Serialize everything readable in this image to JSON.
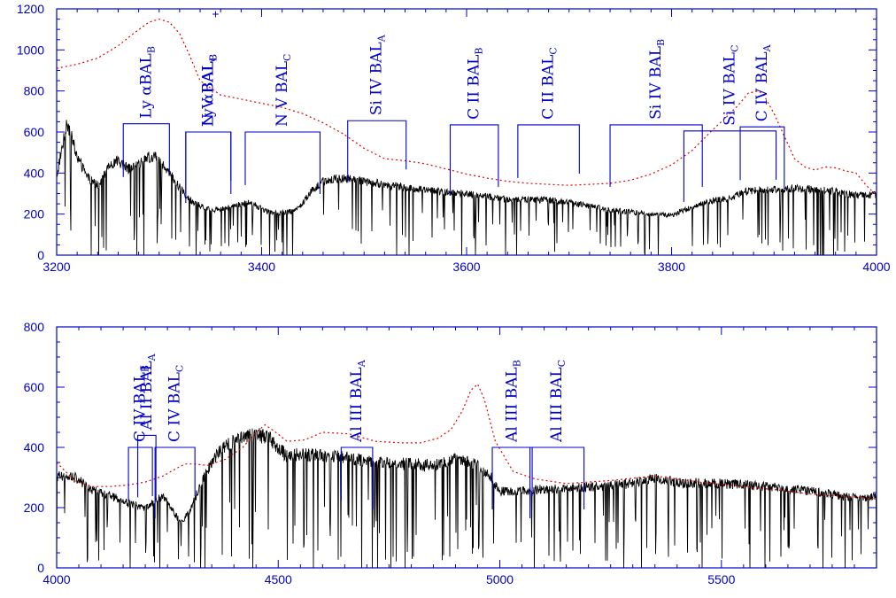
{
  "chart_data": [
    {
      "type": "line",
      "title": "",
      "xlabel": "",
      "ylabel": "",
      "xlim": [
        3200,
        4000
      ],
      "ylim": [
        0,
        1200
      ],
      "x_ticks": [
        3200,
        3400,
        3600,
        3800,
        4000
      ],
      "y_ticks": [
        0,
        200,
        400,
        600,
        800,
        1000,
        1200
      ],
      "grid": false,
      "series": [
        {
          "color": "#000000",
          "style": "solid",
          "x": [
            3200,
            3205,
            3210,
            3220,
            3230,
            3240,
            3250,
            3260,
            3270,
            3280,
            3290,
            3300,
            3310,
            3320,
            3330,
            3340,
            3350,
            3360,
            3370,
            3380,
            3390,
            3400,
            3410,
            3420,
            3430,
            3440,
            3450,
            3460,
            3470,
            3480,
            3490,
            3500,
            3520,
            3540,
            3560,
            3580,
            3600,
            3620,
            3640,
            3660,
            3680,
            3700,
            3720,
            3740,
            3760,
            3780,
            3800,
            3820,
            3840,
            3860,
            3870,
            3880,
            3900,
            3920,
            3940,
            3960,
            3980,
            4000
          ],
          "values": [
            380,
            520,
            650,
            480,
            380,
            340,
            420,
            460,
            420,
            440,
            480,
            470,
            400,
            330,
            270,
            240,
            220,
            225,
            235,
            250,
            255,
            225,
            205,
            205,
            215,
            255,
            320,
            360,
            370,
            375,
            370,
            360,
            345,
            330,
            320,
            305,
            300,
            285,
            270,
            270,
            270,
            255,
            240,
            220,
            210,
            200,
            195,
            235,
            265,
            280,
            310,
            315,
            320,
            325,
            320,
            310,
            290,
            295
          ]
        },
        {
          "color": "#e00000",
          "style": "dotted",
          "x": [
            3200,
            3220,
            3240,
            3260,
            3275,
            3290,
            3300,
            3310,
            3320,
            3330,
            3340,
            3360,
            3380,
            3400,
            3420,
            3440,
            3460,
            3480,
            3500,
            3520,
            3540,
            3560,
            3580,
            3600,
            3620,
            3640,
            3660,
            3680,
            3700,
            3720,
            3740,
            3760,
            3780,
            3800,
            3820,
            3840,
            3855,
            3865,
            3875,
            3885,
            3890,
            3900,
            3910,
            3920,
            3930,
            3940,
            3950,
            3960,
            3970,
            3980,
            3990,
            4000
          ],
          "values": [
            910,
            930,
            960,
            1020,
            1080,
            1135,
            1150,
            1135,
            1080,
            970,
            850,
            780,
            760,
            740,
            720,
            690,
            645,
            590,
            520,
            470,
            460,
            445,
            420,
            395,
            375,
            360,
            350,
            345,
            340,
            345,
            350,
            365,
            395,
            440,
            510,
            610,
            680,
            730,
            790,
            800,
            780,
            690,
            580,
            470,
            430,
            415,
            430,
            425,
            410,
            400,
            340,
            290
          ]
        }
      ],
      "annotations": [
        {
          "label": "Ly αBAL",
          "sub": "B",
          "x1": 3265,
          "x2": 3310,
          "y_top": 640
        },
        {
          "label": "N V BAL",
          "sub": "B",
          "x1": 3326,
          "x2": 3370,
          "y_top": 600
        },
        {
          "label": "Ly αBAL",
          "sub": "C",
          "x1": 3326,
          "x2": 3370,
          "y_top": 600
        },
        {
          "label": "N V BAL",
          "sub": "C",
          "x1": 3384,
          "x2": 3457,
          "y_top": 600
        },
        {
          "label": "Si IV BAL",
          "sub": "A",
          "x1": 3484,
          "x2": 3541,
          "y_top": 655
        },
        {
          "label": "C II BAL",
          "sub": "B",
          "x1": 3584,
          "x2": 3631,
          "y_top": 635
        },
        {
          "label": "C II BAL",
          "sub": "C",
          "x1": 3650,
          "x2": 3710,
          "y_top": 635
        },
        {
          "label": "Si IV BAL",
          "sub": "B",
          "x1": 3740,
          "x2": 3830,
          "y_top": 635
        },
        {
          "label": "Si IV BAL",
          "sub": "C",
          "x1": 3812,
          "x2": 3902,
          "y_top": 605
        },
        {
          "label": "C IV BAL",
          "sub": "A",
          "x1": 3867,
          "x2": 3910,
          "y_top": 625
        }
      ],
      "markers": [
        {
          "symbol": "+",
          "x": 3355,
          "y": 1180
        }
      ]
    },
    {
      "type": "line",
      "title": "",
      "xlabel": "",
      "ylabel": "",
      "xlim": [
        4000,
        5850
      ],
      "ylim": [
        0,
        800
      ],
      "x_ticks": [
        4000,
        4500,
        5000,
        5500
      ],
      "y_ticks": [
        0,
        200,
        400,
        600,
        800
      ],
      "grid": false,
      "series": [
        {
          "color": "#000000",
          "style": "solid",
          "x": [
            4000,
            4040,
            4080,
            4120,
            4160,
            4200,
            4240,
            4280,
            4300,
            4320,
            4340,
            4360,
            4380,
            4400,
            4420,
            4440,
            4460,
            4480,
            4500,
            4520,
            4540,
            4560,
            4600,
            4650,
            4700,
            4750,
            4800,
            4850,
            4900,
            4950,
            4980,
            5000,
            5050,
            5100,
            5150,
            5200,
            5300,
            5350,
            5400,
            5500,
            5600,
            5700,
            5750,
            5780
          ],
          "values": [
            305,
            300,
            260,
            240,
            215,
            200,
            240,
            150,
            185,
            260,
            320,
            370,
            405,
            420,
            430,
            440,
            440,
            430,
            400,
            370,
            375,
            375,
            375,
            365,
            355,
            345,
            345,
            340,
            365,
            340,
            300,
            255,
            255,
            262,
            265,
            268,
            280,
            300,
            283,
            280,
            270,
            255,
            245,
            235
          ]
        },
        {
          "color": "#e00000",
          "style": "dotted",
          "x": [
            4000,
            4040,
            4080,
            4120,
            4160,
            4200,
            4240,
            4270,
            4290,
            4310,
            4340,
            4380,
            4420,
            4450,
            4470,
            4490,
            4520,
            4560,
            4600,
            4660,
            4720,
            4780,
            4820,
            4860,
            4890,
            4915,
            4935,
            4950,
            4965,
            4990,
            5030,
            5080,
            5150,
            5250,
            5350,
            5450,
            5550,
            5650,
            5700,
            5750,
            5800,
            5850
          ],
          "values": [
            350,
            290,
            270,
            270,
            275,
            285,
            305,
            330,
            345,
            345,
            340,
            360,
            400,
            450,
            475,
            455,
            420,
            425,
            450,
            445,
            420,
            415,
            415,
            430,
            460,
            520,
            590,
            610,
            560,
            420,
            320,
            295,
            280,
            290,
            305,
            285,
            270,
            255,
            245,
            240,
            235,
            230
          ]
        }
      ],
      "annotations": [
        {
          "label": "C IV BAL",
          "sub": "B",
          "x1": 4162,
          "x2": 4216,
          "y_top": 400
        },
        {
          "label": "Al II BAL",
          "sub": "A",
          "x1": 4183,
          "x2": 4224,
          "y_top": 440
        },
        {
          "label": "C IV BAL",
          "sub": "C",
          "x1": 4222,
          "x2": 4312,
          "y_top": 400
        },
        {
          "label": "Al III BAL",
          "sub": "A",
          "x1": 4642,
          "x2": 4713,
          "y_top": 400
        },
        {
          "label": "Al III BAL",
          "sub": "B",
          "x1": 4983,
          "x2": 5073,
          "y_top": 400
        },
        {
          "label": "Al III BAL",
          "sub": "C",
          "x1": 5068,
          "x2": 5190,
          "y_top": 400
        }
      ],
      "markers": []
    }
  ]
}
